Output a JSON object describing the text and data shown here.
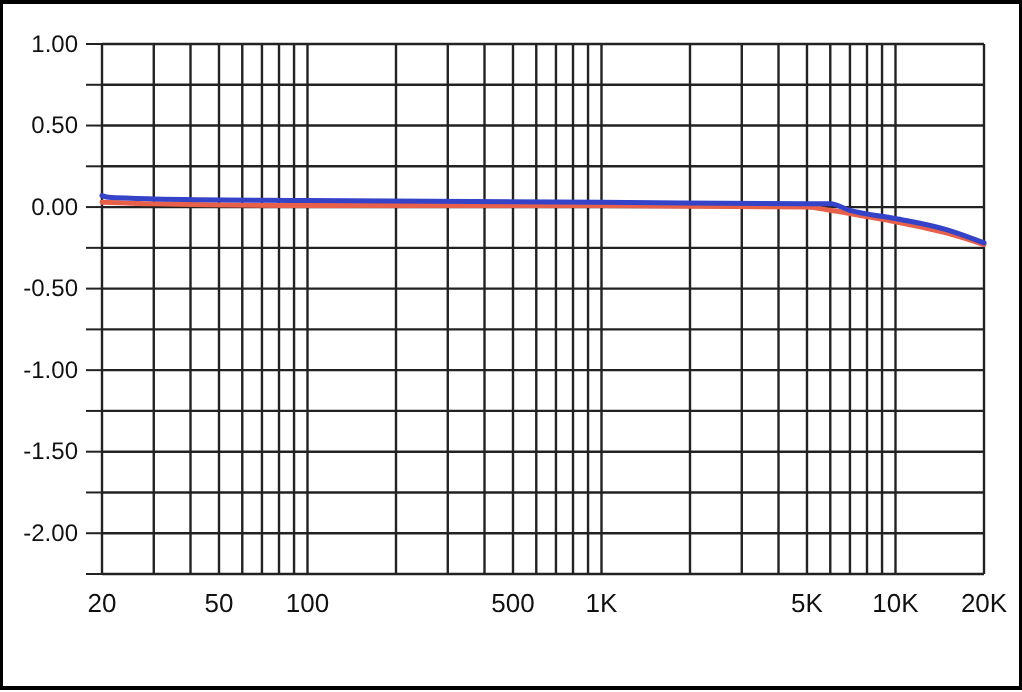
{
  "chart_data": {
    "type": "line",
    "log": "x",
    "grid": true,
    "xlim": [
      20,
      20000
    ],
    "ylim": [
      -2.25,
      1
    ],
    "xticks": [
      20,
      {
        "value": 30,
        "label": null
      },
      {
        "value": 40,
        "label": null
      },
      50,
      {
        "value": 60,
        "label": null
      },
      {
        "value": 70,
        "label": null
      },
      {
        "value": 80,
        "label": null
      },
      {
        "value": 90,
        "label": null
      },
      100,
      {
        "value": 200,
        "label": null
      },
      {
        "value": 300,
        "label": null
      },
      {
        "value": 400,
        "label": null
      },
      500,
      {
        "value": 600,
        "label": null
      },
      {
        "value": 700,
        "label": null
      },
      {
        "value": 800,
        "label": null
      },
      {
        "value": 900,
        "label": null
      },
      {
        "value": 1000,
        "label": "1K"
      },
      {
        "value": 2000,
        "label": null
      },
      {
        "value": 3000,
        "label": null
      },
      {
        "value": 4000,
        "label": null
      },
      {
        "value": 5000,
        "label": "5K"
      },
      {
        "value": 6000,
        "label": null
      },
      {
        "value": 7000,
        "label": null
      },
      {
        "value": 8000,
        "label": null
      },
      {
        "value": 9000,
        "label": null
      },
      {
        "value": 10000,
        "label": "10K"
      },
      {
        "value": 20000,
        "label": "20K"
      }
    ],
    "yticks": [
      {
        "value": 1,
        "label": "1.00"
      },
      {
        "value": 0.75,
        "label": null
      },
      {
        "value": 0.5,
        "label": "0.50"
      },
      {
        "value": 0.25,
        "label": null
      },
      {
        "value": 0,
        "label": "0.00"
      },
      {
        "value": -0.25,
        "label": null
      },
      {
        "value": -0.5,
        "label": "-0.50"
      },
      {
        "value": -0.75,
        "label": null
      },
      {
        "value": -1,
        "label": "-1.00"
      },
      {
        "value": -1.25,
        "label": null
      },
      {
        "value": -1.5,
        "label": "-1.50"
      },
      {
        "value": -1.75,
        "label": null
      },
      {
        "value": -2,
        "label": "-2.00"
      },
      {
        "value": -2.25,
        "label": null
      }
    ],
    "series": [
      {
        "color": "#e8604a",
        "x": [
          20,
          30,
          100,
          1000,
          5000,
          6000,
          7000,
          10000,
          15000,
          20000
        ],
        "values": [
          0.03,
          0.02,
          0.01,
          0.01,
          0.0,
          -0.02,
          -0.04,
          -0.09,
          -0.16,
          -0.23
        ]
      },
      {
        "color": "#3443c8",
        "x": [
          20,
          21,
          30,
          100,
          1000,
          5000,
          6000,
          7000,
          10000,
          15000,
          20000
        ],
        "values": [
          0.07,
          0.06,
          0.05,
          0.04,
          0.03,
          0.02,
          0.02,
          -0.02,
          -0.07,
          -0.14,
          -0.22
        ]
      }
    ]
  }
}
